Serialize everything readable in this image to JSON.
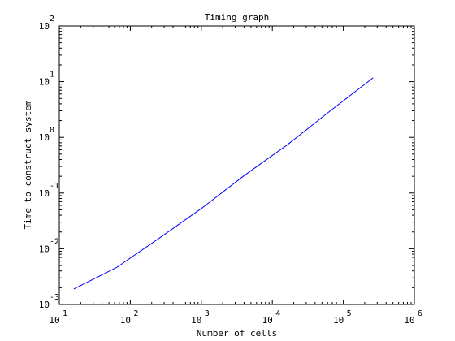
{
  "chart_data": {
    "type": "line",
    "title": "Timing graph",
    "xlabel": "Number of cells",
    "ylabel": "Time to construct system",
    "xscale": "log",
    "yscale": "log",
    "xlim": [
      10,
      1000000
    ],
    "ylim": [
      0.001,
      100
    ],
    "grid": false,
    "x_ticks": [
      {
        "base": "10",
        "exp": "1",
        "value": 10
      },
      {
        "base": "10",
        "exp": "2",
        "value": 100
      },
      {
        "base": "10",
        "exp": "3",
        "value": 1000
      },
      {
        "base": "10",
        "exp": "4",
        "value": 10000
      },
      {
        "base": "10",
        "exp": "5",
        "value": 100000
      },
      {
        "base": "10",
        "exp": "6",
        "value": 1000000
      }
    ],
    "y_ticks": [
      {
        "base": "10",
        "exp": "-3",
        "value": 0.001
      },
      {
        "base": "10",
        "exp": "-2",
        "value": 0.01
      },
      {
        "base": "10",
        "exp": "-1",
        "value": 0.1
      },
      {
        "base": "10",
        "exp": "0",
        "value": 1
      },
      {
        "base": "10",
        "exp": "1",
        "value": 10
      },
      {
        "base": "10",
        "exp": "2",
        "value": 100
      }
    ],
    "series": [
      {
        "color": "#0000ff",
        "x": [
          16,
          64,
          256,
          1024,
          4096,
          16384,
          65536,
          262144
        ],
        "y": [
          0.0019,
          0.0046,
          0.0155,
          0.054,
          0.21,
          0.74,
          3.0,
          11.7
        ]
      }
    ]
  }
}
